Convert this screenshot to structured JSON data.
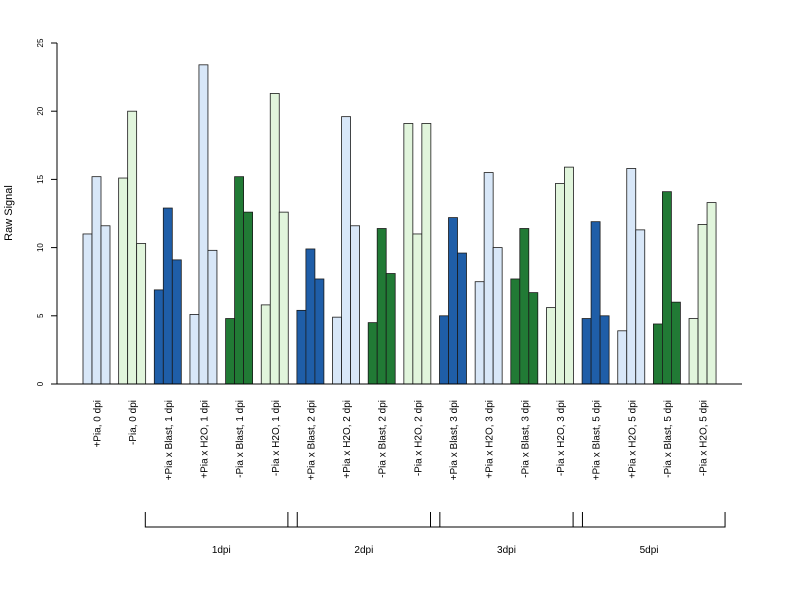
{
  "chart_data": {
    "type": "bar",
    "ylabel": "Raw Signal",
    "xlabel": "",
    "ylim": [
      0,
      25
    ],
    "yticks": [
      "0",
      "5",
      "10",
      "15",
      "20",
      "25"
    ],
    "bars_per_category": 3,
    "categories": [
      "+Pia, 0 dpi",
      "-Pia, 0 dpi",
      "+Pia x Blast, 1 dpi",
      "+Pia x H2O, 1 dpi",
      "-Pia x Blast, 1 dpi",
      "-Pia x H2O, 1 dpi",
      "+Pia x Blast, 2 dpi",
      "+Pia x H2O, 2 dpi",
      "-Pia x Blast, 2 dpi",
      "-Pia x H2O, 2 dpi",
      "+Pia x Blast, 3 dpi",
      "+Pia x H2O, 3 dpi",
      "-Pia x Blast, 3 dpi",
      "-Pia x H2O, 3 dpi",
      "+Pia x Blast, 5 dpi",
      "+Pia x H2O, 5 dpi",
      "-Pia x Blast, 5 dpi",
      "-Pia x H2O, 5 dpi"
    ],
    "values": [
      [
        11.0,
        15.2,
        11.6
      ],
      [
        15.1,
        20.0,
        10.3
      ],
      [
        6.9,
        12.9,
        9.1
      ],
      [
        5.1,
        23.4,
        9.8
      ],
      [
        4.8,
        15.2,
        12.6
      ],
      [
        5.8,
        21.3,
        12.6
      ],
      [
        5.4,
        9.9,
        7.7
      ],
      [
        4.9,
        19.6,
        11.6
      ],
      [
        4.5,
        11.4,
        8.1
      ],
      [
        19.1,
        11.0,
        19.1
      ],
      [
        5.0,
        12.2,
        9.6
      ],
      [
        7.5,
        15.5,
        10.0
      ],
      [
        7.7,
        11.4,
        6.7
      ],
      [
        5.6,
        14.7,
        15.9
      ],
      [
        4.8,
        11.9,
        5.0
      ],
      [
        3.9,
        15.8,
        11.3
      ],
      [
        4.4,
        14.1,
        6.0
      ],
      [
        4.8,
        11.7,
        13.3
      ]
    ],
    "category_colors": [
      "#d8e7f8",
      "#e1f5dc",
      "#1f5ea8",
      "#d8e7f8",
      "#217a35",
      "#e1f5dc",
      "#1f5ea8",
      "#d8e7f8",
      "#217a35",
      "#e1f5dc",
      "#1f5ea8",
      "#d8e7f8",
      "#217a35",
      "#e1f5dc",
      "#1f5ea8",
      "#d8e7f8",
      "#217a35",
      "#e1f5dc"
    ],
    "groups": [
      {
        "label": "1dpi",
        "from": 2,
        "to": 5
      },
      {
        "label": "2dpi",
        "from": 6,
        "to": 9
      },
      {
        "label": "3dpi",
        "from": 10,
        "to": 13
      },
      {
        "label": "5dpi",
        "from": 14,
        "to": 17
      }
    ],
    "grid": false,
    "legend": "none"
  }
}
